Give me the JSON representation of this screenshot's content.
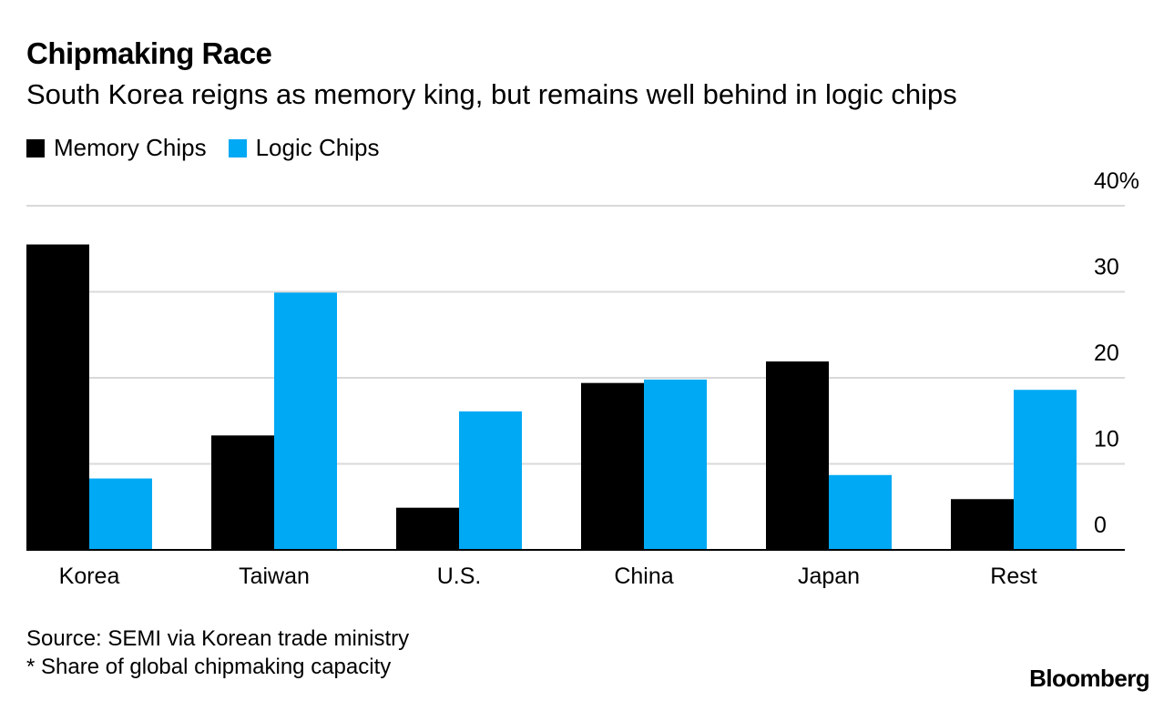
{
  "title": "Chipmaking Race",
  "subtitle": "South Korea reigns as memory king, but remains well behind in logic chips",
  "legend": [
    {
      "label": "Memory Chips",
      "color": "#000000"
    },
    {
      "label": "Logic Chips",
      "color": "#00a9f4"
    }
  ],
  "source": "Source: SEMI via Korean trade ministry",
  "note": "* Share of global chipmaking capacity",
  "brand": "Bloomberg",
  "chart_data": {
    "type": "bar",
    "categories": [
      "Korea",
      "Taiwan",
      "U.S.",
      "China",
      "Japan",
      "Rest"
    ],
    "series": [
      {
        "name": "Memory Chips",
        "color": "#000000",
        "values": [
          35.5,
          13.3,
          4.9,
          19.4,
          21.9,
          5.9
        ]
      },
      {
        "name": "Logic Chips",
        "color": "#00a9f4",
        "values": [
          8.3,
          29.9,
          16.1,
          19.8,
          8.7,
          18.6
        ]
      }
    ],
    "ylim": [
      0,
      40
    ],
    "yticks": [
      0,
      10,
      20,
      30,
      40
    ],
    "ytick_labels": [
      "0",
      "10",
      "20",
      "30",
      "40%"
    ],
    "grid": true,
    "axis_side": "right"
  }
}
